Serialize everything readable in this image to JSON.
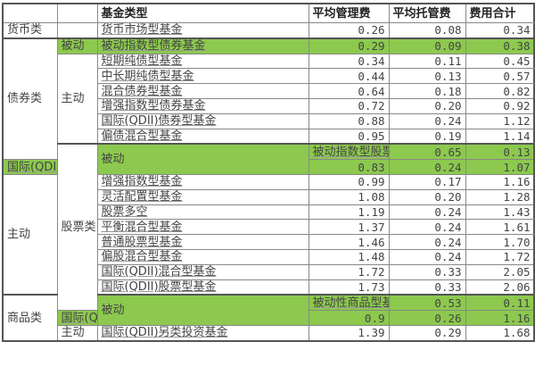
{
  "headers": [
    "",
    "",
    "基金类型",
    "平均管理费",
    "平均托管费",
    "费用合计"
  ],
  "highlight_color": "#8cc94e",
  "rows": [
    {
      "cat": "货币类",
      "sub": "",
      "name": "货币市场型基金",
      "mgmt": "0.26",
      "cust": "0.08",
      "total": "0.34"
    },
    {
      "cat": "债券类",
      "sub": "被动",
      "name": "被动指数型债券基金",
      "mgmt": "0.29",
      "cust": "0.09",
      "total": "0.38"
    },
    {
      "sub": "主动",
      "name": "短期纯债型基金",
      "mgmt": "0.34",
      "cust": "0.11",
      "total": "0.45"
    },
    {
      "name": "中长期纯债型基金",
      "mgmt": "0.44",
      "cust": "0.13",
      "total": "0.57"
    },
    {
      "name": "混合债券型基金",
      "mgmt": "0.64",
      "cust": "0.18",
      "total": "0.82"
    },
    {
      "name": "增强指数型债券基金",
      "mgmt": "0.72",
      "cust": "0.20",
      "total": "0.92"
    },
    {
      "name": "国际(QDII)债券型基金",
      "mgmt": "0.88",
      "cust": "0.24",
      "total": "1.12"
    },
    {
      "name": "偏债混合型基金",
      "mgmt": "0.95",
      "cust": "0.19",
      "total": "1.14"
    },
    {
      "cat": "股票类",
      "sub": "被动",
      "name": "被动指数型股票基金",
      "mgmt": "0.65",
      "cust": "0.13",
      "total": "0.78"
    },
    {
      "name": "国际(QDII)被动型指数基金",
      "mgmt": "0.83",
      "cust": "0.24",
      "total": "1.07"
    },
    {
      "sub": "主动",
      "name": "增强指数型基金",
      "mgmt": "0.99",
      "cust": "0.17",
      "total": "1.16"
    },
    {
      "name": "灵活配置型基金",
      "mgmt": "1.08",
      "cust": "0.20",
      "total": "1.28"
    },
    {
      "name": "股票多空",
      "mgmt": "1.19",
      "cust": "0.24",
      "total": "1.43"
    },
    {
      "name": "平衡混合型基金",
      "mgmt": "1.37",
      "cust": "0.24",
      "total": "1.61"
    },
    {
      "name": "普通股票型基金",
      "mgmt": "1.46",
      "cust": "0.24",
      "total": "1.70"
    },
    {
      "name": "偏股混合型基金",
      "mgmt": "1.48",
      "cust": "0.24",
      "total": "1.72"
    },
    {
      "name": "国际(QDII)混合型基金",
      "mgmt": "1.72",
      "cust": "0.33",
      "total": "2.05"
    },
    {
      "name": "国际(QDII)股票型基金",
      "mgmt": "1.73",
      "cust": "0.33",
      "total": "2.06"
    },
    {
      "cat": "商品类",
      "sub": "被动",
      "name": "被动性商品型基金",
      "mgmt": "0.53",
      "cust": "0.11",
      "total": "0.64"
    },
    {
      "name": "国际(QDII)被动性另类投资基金",
      "mgmt": "0.9",
      "cust": "0.26",
      "total": "1.16"
    },
    {
      "sub": "主动",
      "name": "国际(QDII)另类投资基金",
      "mgmt": "1.39",
      "cust": "0.29",
      "total": "1.68"
    }
  ]
}
